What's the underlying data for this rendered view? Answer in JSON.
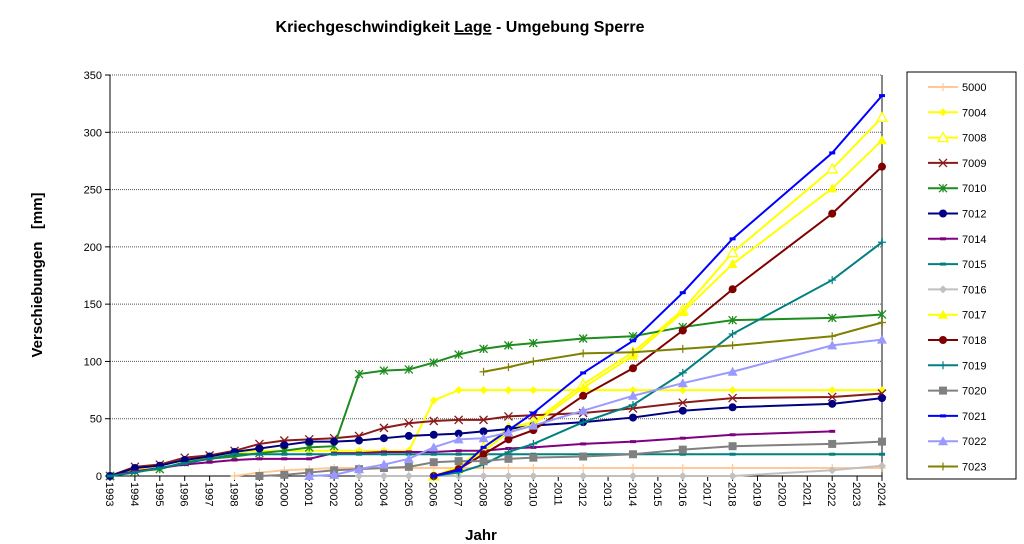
{
  "chart_data": {
    "type": "line",
    "title_parts": [
      "Kriechgeschwindigkeit ",
      "Lage",
      " - Umgebung Sperre"
    ],
    "xlabel": "Jahr",
    "ylabel": "Verschiebungen   [mm]",
    "xlim": [
      1993,
      2024
    ],
    "ylim": [
      0,
      350
    ],
    "yticks": [
      0,
      50,
      100,
      150,
      200,
      250,
      300,
      350
    ],
    "xticks": [
      1993,
      1994,
      1995,
      1996,
      1997,
      1998,
      1999,
      2000,
      2001,
      2002,
      2003,
      2004,
      2005,
      2006,
      2007,
      2008,
      2009,
      2010,
      2011,
      2012,
      2013,
      2014,
      2015,
      2016,
      2017,
      2018,
      2019,
      2020,
      2021,
      2022,
      2023,
      2024
    ],
    "grid": "horizontal dotted",
    "legend": "right",
    "series": [
      {
        "name": "5000",
        "color": "#FFC896",
        "marker": "plus",
        "x": [
          1998,
          1999,
          2000,
          2001,
          2002,
          2003,
          2004,
          2005,
          2006,
          2007,
          2008,
          2009,
          2010,
          2012,
          2014,
          2016,
          2018,
          2022,
          2024
        ],
        "y": [
          0,
          3,
          5,
          6,
          7,
          7,
          7,
          7,
          7,
          7,
          7,
          7,
          7,
          7,
          7,
          7,
          7,
          7,
          7
        ]
      },
      {
        "name": "7004",
        "color": "#FFFF00",
        "marker": "diamond",
        "x": [
          1993,
          1994,
          1995,
          1996,
          1997,
          1998,
          1999,
          2000,
          2001,
          2002,
          2003,
          2004,
          2005,
          2006,
          2007,
          2008,
          2009,
          2010,
          2012,
          2014,
          2016,
          2018,
          2022,
          2024
        ],
        "y": [
          0,
          5,
          9,
          14,
          16,
          20,
          22,
          22,
          22,
          22,
          22,
          22,
          22,
          66,
          75,
          75,
          75,
          75,
          75,
          75,
          75,
          75,
          75,
          75
        ]
      },
      {
        "name": "7008",
        "color": "#FFFF00",
        "marker": "open-triangle",
        "x": [
          2006,
          2007,
          2008,
          2009,
          2010,
          2012,
          2014,
          2016,
          2018,
          2022,
          2024
        ],
        "y": [
          0,
          8,
          25,
          42,
          47,
          80,
          108,
          145,
          195,
          268,
          313
        ]
      },
      {
        "name": "7009",
        "color": "#8B1A1A",
        "marker": "x",
        "x": [
          1993,
          1994,
          1995,
          1996,
          1997,
          1998,
          1999,
          2000,
          2001,
          2002,
          2003,
          2004,
          2005,
          2006,
          2007,
          2008,
          2009,
          2010,
          2012,
          2014,
          2016,
          2018,
          2022,
          2024
        ],
        "y": [
          0,
          8,
          10,
          16,
          18,
          22,
          28,
          31,
          32,
          33,
          35,
          42,
          46,
          48,
          49,
          49,
          52,
          53,
          55,
          59,
          64,
          68,
          69,
          72
        ]
      },
      {
        "name": "7010",
        "color": "#1E8C1E",
        "marker": "star",
        "x": [
          1993,
          1994,
          1995,
          1996,
          1997,
          1998,
          1999,
          2000,
          2001,
          2002,
          2003,
          2004,
          2005,
          2006,
          2007,
          2008,
          2009,
          2010,
          2012,
          2014,
          2016,
          2018,
          2022,
          2024
        ],
        "y": [
          0,
          4,
          6,
          12,
          15,
          17,
          20,
          22,
          25,
          26,
          89,
          92,
          93,
          99,
          106,
          111,
          114,
          116,
          120,
          122,
          130,
          136,
          138,
          141
        ]
      },
      {
        "name": "7012",
        "color": "#000080",
        "marker": "circle",
        "x": [
          1993,
          1994,
          1995,
          1996,
          1997,
          1998,
          1999,
          2000,
          2001,
          2002,
          2003,
          2004,
          2005,
          2006,
          2007,
          2008,
          2009,
          2010,
          2012,
          2014,
          2016,
          2018,
          2022,
          2024
        ],
        "y": [
          0,
          7,
          9,
          14,
          17,
          21,
          24,
          27,
          30,
          30,
          31,
          33,
          35,
          36,
          37,
          39,
          41,
          44,
          47,
          51,
          57,
          60,
          63,
          68
        ]
      },
      {
        "name": "7014",
        "color": "#800080",
        "marker": "dash",
        "x": [
          1993,
          1994,
          1995,
          1996,
          1997,
          1998,
          1999,
          2000,
          2001,
          2002,
          2003,
          2004,
          2005,
          2006,
          2007,
          2008,
          2009,
          2010,
          2012,
          2014,
          2016,
          2018,
          2022
        ],
        "y": [
          0,
          4,
          7,
          10,
          12,
          14,
          15,
          15,
          15,
          20,
          20,
          21,
          21,
          21,
          22,
          22,
          24,
          25,
          28,
          30,
          33,
          36,
          39
        ]
      },
      {
        "name": "7015",
        "color": "#008080",
        "marker": "dash",
        "x": [
          1993,
          1994,
          1995,
          1996,
          1997,
          1998,
          1999,
          2000,
          2001,
          2002,
          2003,
          2004,
          2005,
          2006,
          2007,
          2008,
          2009,
          2010,
          2012,
          2014,
          2016,
          2018,
          2022,
          2024
        ],
        "y": [
          0,
          3,
          7,
          11,
          15,
          19,
          19,
          19,
          19,
          19,
          19,
          19,
          19,
          19,
          19,
          19,
          19,
          19,
          19,
          19,
          19,
          19,
          19,
          19
        ]
      },
      {
        "name": "7016",
        "color": "#C0C0C0",
        "marker": "diamond",
        "x": [
          2003,
          2004,
          2005,
          2006,
          2007,
          2008,
          2009,
          2010,
          2012,
          2014,
          2016,
          2018,
          2022,
          2024
        ],
        "y": [
          0,
          0,
          0,
          0,
          0,
          0,
          0,
          0,
          0,
          0,
          0,
          0,
          5,
          9
        ]
      },
      {
        "name": "7017",
        "color": "#FFFF00",
        "marker": "triangle",
        "x": [
          2006,
          2007,
          2008,
          2009,
          2010,
          2012,
          2014,
          2016,
          2018,
          2022,
          2024
        ],
        "y": [
          0,
          6,
          22,
          38,
          45,
          77,
          105,
          143,
          185,
          251,
          293
        ]
      },
      {
        "name": "7018",
        "color": "#800000",
        "marker": "circle",
        "x": [
          2006,
          2007,
          2008,
          2009,
          2010,
          2012,
          2014,
          2016,
          2018,
          2022,
          2024
        ],
        "y": [
          0,
          6,
          19,
          32,
          40,
          70,
          94,
          127,
          163,
          229,
          270
        ]
      },
      {
        "name": "7019",
        "color": "#008080",
        "marker": "plus",
        "x": [
          2006,
          2007,
          2008,
          2009,
          2010,
          2012,
          2014,
          2016,
          2018,
          2022,
          2024
        ],
        "y": [
          0,
          3,
          10,
          21,
          28,
          47,
          62,
          90,
          124,
          171,
          204
        ]
      },
      {
        "name": "7020",
        "color": "#808080",
        "marker": "square",
        "x": [
          1999,
          2000,
          2001,
          2002,
          2003,
          2004,
          2005,
          2006,
          2007,
          2008,
          2009,
          2010,
          2012,
          2014,
          2016,
          2018,
          2022,
          2024
        ],
        "y": [
          0,
          1,
          3,
          5,
          6,
          7,
          8,
          12,
          13,
          13,
          15,
          16,
          17,
          19,
          23,
          26,
          28,
          30
        ]
      },
      {
        "name": "7021",
        "color": "#0000FF",
        "marker": "dash",
        "x": [
          2006,
          2007,
          2008,
          2009,
          2010,
          2012,
          2014,
          2016,
          2018,
          2022,
          2024
        ],
        "y": [
          0,
          5,
          25,
          40,
          55,
          90,
          118,
          160,
          207,
          282,
          332
        ]
      },
      {
        "name": "7022",
        "color": "#9999FF",
        "marker": "triangle",
        "x": [
          2001,
          2002,
          2003,
          2004,
          2005,
          2006,
          2007,
          2008,
          2009,
          2010,
          2012,
          2014,
          2016,
          2018,
          2022,
          2024
        ],
        "y": [
          0,
          1,
          6,
          10,
          15,
          25,
          32,
          33,
          38,
          44,
          57,
          70,
          81,
          91,
          114,
          119
        ]
      },
      {
        "name": "7023",
        "color": "#808000",
        "marker": "plus",
        "x": [
          2008,
          2009,
          2010,
          2012,
          2014,
          2016,
          2018,
          2022,
          2024
        ],
        "y": [
          91,
          95,
          100,
          107,
          108,
          111,
          114,
          122,
          134
        ]
      }
    ]
  }
}
